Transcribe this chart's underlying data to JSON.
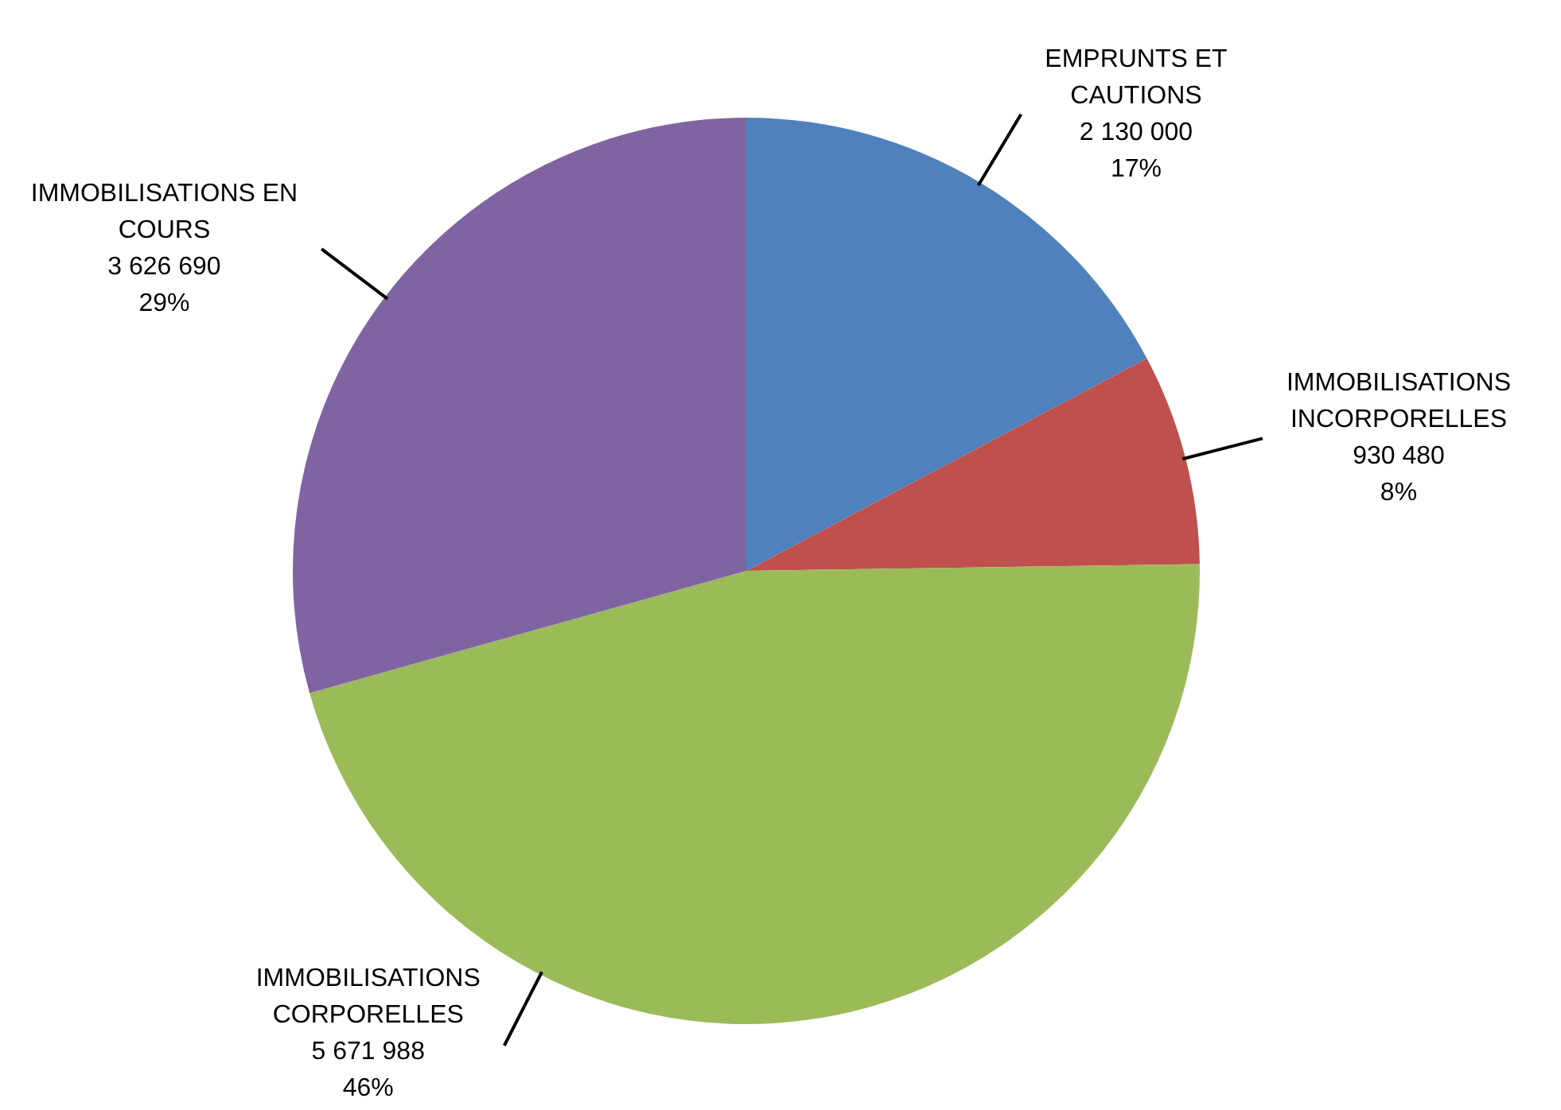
{
  "chart_data": {
    "type": "pie",
    "categories": [
      "EMPRUNTS ET CAUTIONS",
      "IMMOBILISATIONS INCORPORELLES",
      "IMMOBILISATIONS CORPORELLES",
      "IMMOBILISATIONS EN COURS"
    ],
    "values": [
      2130000,
      930480,
      5671988,
      3626690
    ],
    "colors": [
      "#4f81bd",
      "#c0504d",
      "#9bbb59",
      "#8064a2"
    ],
    "value_labels": [
      "2 130 000\n17%",
      "930 480\n8%",
      "5 671 988\n46%",
      "3 626 690\n29%"
    ]
  }
}
